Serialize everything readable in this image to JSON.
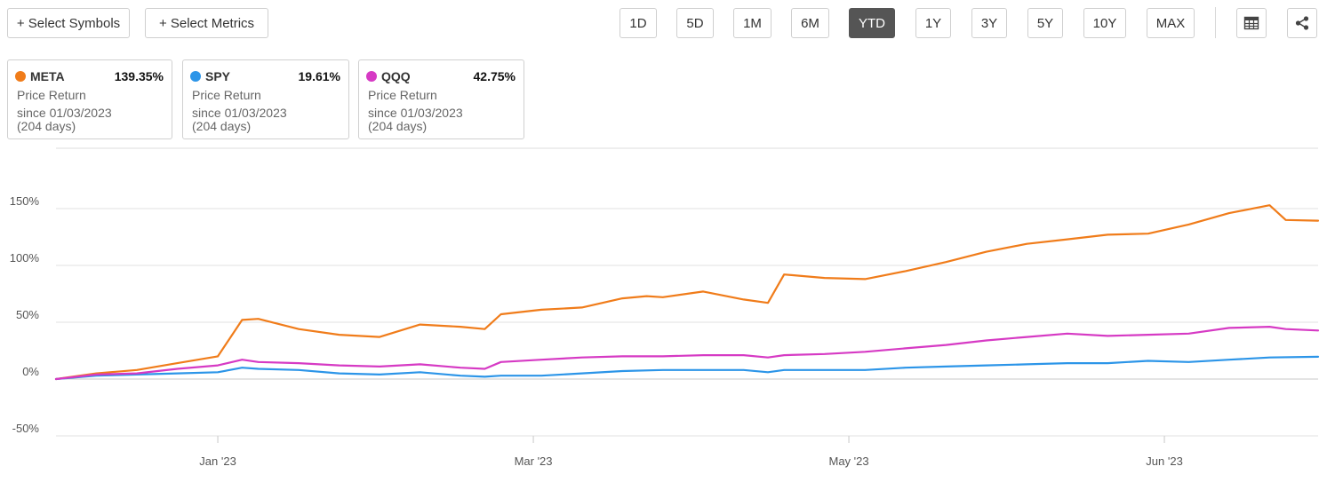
{
  "toolbar": {
    "select_symbols": "+ Select Symbols",
    "select_metrics": "+ Select Metrics",
    "ranges": [
      "1D",
      "5D",
      "1M",
      "6M",
      "YTD",
      "1Y",
      "3Y",
      "5Y",
      "10Y",
      "MAX"
    ],
    "active_range": "YTD",
    "icons": [
      "table-icon",
      "share-icon"
    ]
  },
  "cards": [
    {
      "symbol": "META",
      "return": "139.35%",
      "metric": "Price Return",
      "since": "since 01/03/2023",
      "days": "(204 days)",
      "color": "#f07c1a"
    },
    {
      "symbol": "SPY",
      "return": "19.61%",
      "metric": "Price Return",
      "since": "since 01/03/2023",
      "days": "(204 days)",
      "color": "#2c95e8"
    },
    {
      "symbol": "QQQ",
      "return": "42.75%",
      "metric": "Price Return",
      "since": "since 01/03/2023",
      "days": "(204 days)",
      "color": "#d63ac4"
    }
  ],
  "chart_data": {
    "type": "line",
    "y_ticks": [
      {
        "label": "150%",
        "value": 150
      },
      {
        "label": "100%",
        "value": 100
      },
      {
        "label": "50%",
        "value": 50
      },
      {
        "label": "0%",
        "value": 0
      },
      {
        "label": "-50%",
        "value": -50
      }
    ],
    "x_ticks": [
      {
        "label": "Jan '23",
        "x": 20
      },
      {
        "label": "Mar '23",
        "x": 59
      },
      {
        "label": "May '23",
        "x": 98
      },
      {
        "label": "Jun '23",
        "x": 137
      }
    ],
    "ylim": [
      -50,
      200
    ],
    "xlim": [
      0,
      156
    ],
    "grid": true,
    "series": [
      {
        "name": "META",
        "color": "#f07c1a",
        "x": [
          0,
          5,
          10,
          15,
          20,
          23,
          25,
          30,
          35,
          40,
          45,
          50,
          53,
          55,
          60,
          65,
          70,
          73,
          75,
          80,
          85,
          88,
          90,
          95,
          100,
          105,
          110,
          115,
          120,
          125,
          130,
          135,
          140,
          145,
          150,
          152,
          156
        ],
        "y": [
          0,
          5,
          8,
          14,
          20,
          52,
          53,
          44,
          39,
          37,
          48,
          46,
          44,
          57,
          61,
          63,
          71,
          73,
          72,
          77,
          70,
          67,
          92,
          89,
          88,
          95,
          103,
          112,
          119,
          123,
          127,
          128,
          136,
          146,
          153,
          140,
          139.35
        ]
      },
      {
        "name": "SPY",
        "color": "#2c95e8",
        "x": [
          0,
          5,
          10,
          15,
          20,
          23,
          25,
          30,
          35,
          40,
          45,
          50,
          53,
          55,
          60,
          65,
          70,
          75,
          80,
          85,
          88,
          90,
          95,
          100,
          105,
          110,
          115,
          120,
          125,
          130,
          135,
          140,
          145,
          150,
          156
        ],
        "y": [
          0,
          3,
          4,
          5,
          6,
          10,
          9,
          8,
          5,
          4,
          6,
          3,
          2,
          3,
          3,
          5,
          7,
          8,
          8,
          8,
          6,
          8,
          8,
          8,
          10,
          11,
          12,
          13,
          14,
          14,
          16,
          15,
          17,
          19,
          19.61
        ]
      },
      {
        "name": "QQQ",
        "color": "#d63ac4",
        "x": [
          0,
          5,
          10,
          15,
          20,
          23,
          25,
          30,
          35,
          40,
          45,
          50,
          53,
          55,
          60,
          65,
          70,
          75,
          80,
          85,
          88,
          90,
          95,
          100,
          105,
          110,
          115,
          120,
          125,
          130,
          135,
          140,
          145,
          150,
          152,
          156
        ],
        "y": [
          0,
          4,
          5,
          9,
          12,
          17,
          15,
          14,
          12,
          11,
          13,
          10,
          9,
          15,
          17,
          19,
          20,
          20,
          21,
          21,
          19,
          21,
          22,
          24,
          27,
          30,
          34,
          37,
          40,
          38,
          39,
          40,
          45,
          46,
          44,
          42.75
        ]
      }
    ]
  }
}
